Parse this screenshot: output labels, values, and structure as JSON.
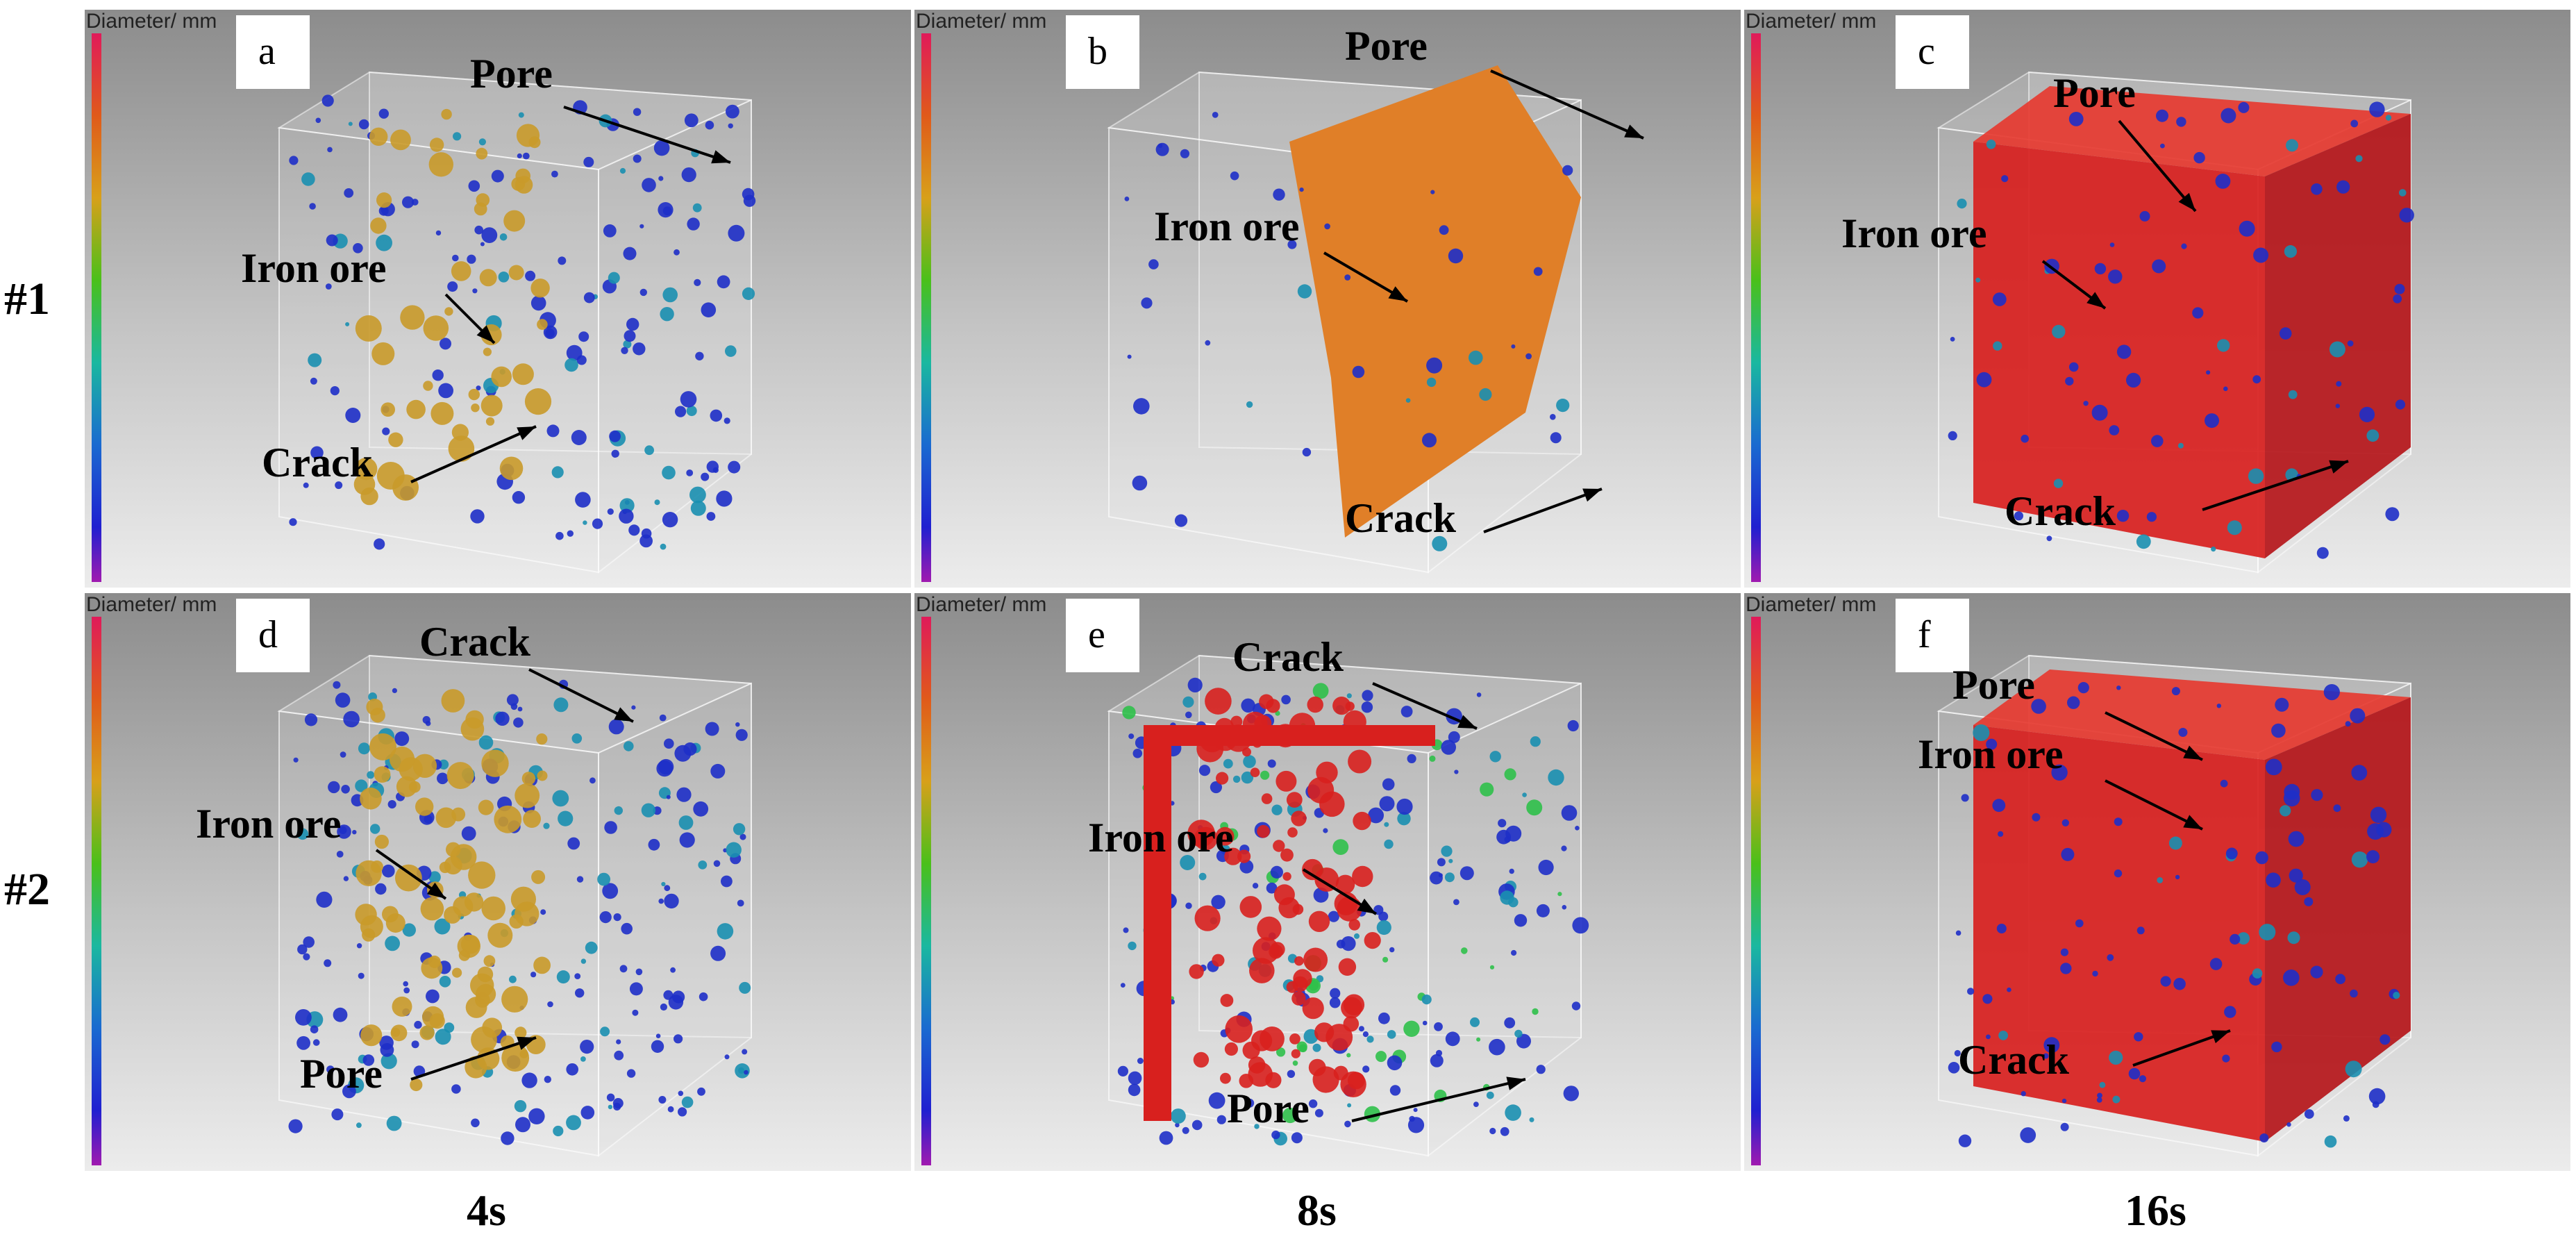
{
  "colors": {
    "iron_ore_orange": "#e07f28",
    "iron_ore_gold": "#c99a2a",
    "red": "#d8201e",
    "blue": "#1e2fc8",
    "teal": "#1a8fb0",
    "green": "#2fc04a"
  },
  "rows": [
    "#1",
    "#2"
  ],
  "columns": [
    "4s",
    "8s",
    "16s"
  ],
  "scale_bar": {
    "label": "Diameter/ mm",
    "colors": [
      "#cc1a1a",
      "#e07a1a",
      "#b8a21a",
      "#3ab81a",
      "#1ab89c",
      "#1a6ab8",
      "#2a2ad0",
      "#6a1aa0"
    ]
  },
  "panels": [
    {
      "letter": "a",
      "annotations": [
        "Pore",
        "Iron ore",
        "Crack"
      ]
    },
    {
      "letter": "b",
      "annotations": [
        "Pore",
        "Iron ore",
        "Crack"
      ]
    },
    {
      "letter": "c",
      "annotations": [
        "Pore",
        "Iron ore",
        "Crack"
      ]
    },
    {
      "letter": "d",
      "annotations": [
        "Crack",
        "Iron ore",
        "Pore"
      ]
    },
    {
      "letter": "e",
      "annotations": [
        "Crack",
        "Iron ore",
        "Pore"
      ]
    },
    {
      "letter": "f",
      "annotations": [
        "Pore",
        "Iron ore",
        "Crack"
      ]
    }
  ]
}
